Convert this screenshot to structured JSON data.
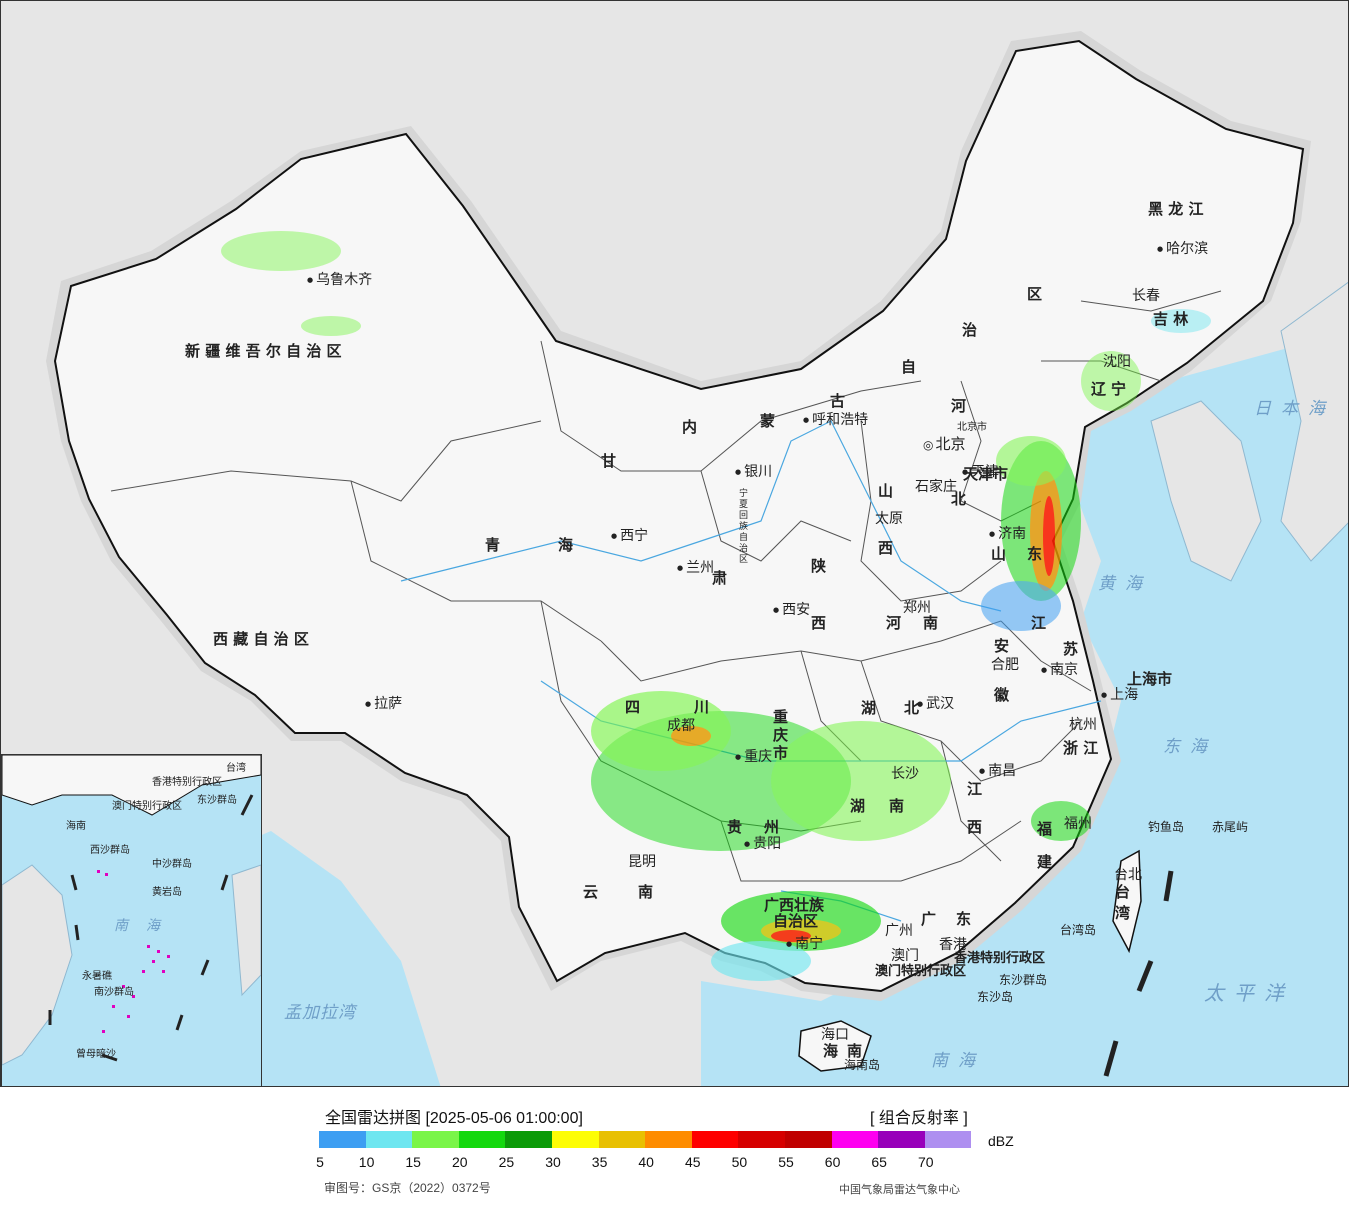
{
  "map": {
    "regions": {
      "xinjiang": "新 疆 维 吾 尔 自 治 区",
      "tibet": "西 藏 自 治 区",
      "qinghai_a": "青",
      "qinghai_b": "海",
      "gansu_a": "甘",
      "gansu_b": "肃",
      "neimenggu_a": "内",
      "neimenggu_b": "蒙",
      "neimenggu_c": "古",
      "neimenggu_d": "自",
      "neimenggu_e": "治",
      "neimenggu_f": "区",
      "heilongjiang": "黑 龙 江",
      "jilin": "吉 林",
      "liaoning_a": "辽",
      "liaoning_b": "宁",
      "hebei_a": "河",
      "hebei_b": "北",
      "shanxi_a": "山",
      "shanxi_b": "西",
      "shaanxi_a": "陕",
      "shaanxi_b": "西",
      "ningxia": "宁夏回族自治区",
      "shandong_a": "山",
      "shandong_b": "东",
      "henan_a": "河",
      "henan_b": "南",
      "jiangsu_a": "江",
      "jiangsu_b": "苏",
      "anhui_a": "安",
      "anhui_b": "徽",
      "shanghai": "上海市",
      "zhejiang": "浙 江",
      "sichuan_a": "四",
      "sichuan_b": "川",
      "chongqing": "重庆市",
      "hubei_a": "湖",
      "hubei_b": "北",
      "hunan_a": "湖",
      "hunan_b": "南",
      "jiangxi_a": "江",
      "jiangxi_b": "西",
      "fujian_a": "福",
      "fujian_b": "建",
      "guizhou_a": "贵",
      "guizhou_b": "州",
      "yunnan_a": "云",
      "yunnan_b": "南",
      "guangxi_a": "广西壮族",
      "guangxi_b": "自治区",
      "guangdong_a": "广",
      "guangdong_b": "东",
      "hainan_a": "海",
      "hainan_b": "南",
      "taiwan_a": "台",
      "taiwan_b": "湾",
      "hk": "香港特别行政区",
      "macau": "澳门特别行政区",
      "beijing": "北京市",
      "tianjin": "天津市"
    },
    "cities": {
      "urumqi": "乌鲁木齐",
      "lhasa": "拉萨",
      "xining": "西宁",
      "lanzhou": "兰州",
      "yinchuan": "银川",
      "huhehaote": "呼和浩特",
      "harbin": "哈尔滨",
      "changchun": "长春",
      "shenyang": "沈阳",
      "beijing": "北京",
      "tianjin": "天津",
      "shijiazhuang": "石家庄",
      "taiyuan": "太原",
      "jinan": "济南",
      "zhengzhou": "郑州",
      "xian": "西安",
      "hefei": "合肥",
      "nanjing": "南京",
      "shanghai": "上海",
      "hangzhou": "杭州",
      "wuhan": "武汉",
      "chengdu": "成都",
      "chongqing": "重庆",
      "changsha": "长沙",
      "nanchang": "南昌",
      "fuzhou": "福州",
      "guiyang": "贵阳",
      "kunming": "昆明",
      "nanning": "南宁",
      "guangzhou": "广州",
      "hongkong": "香港",
      "macau": "澳门",
      "haikou": "海口",
      "taibei": "台北"
    },
    "islands": {
      "diaoyu": "钓鱼岛",
      "chiwei": "赤尾屿",
      "dongsha_qd": "东沙群岛",
      "dongsha_d": "东沙岛",
      "hainan_dao": "海南岛",
      "taiwan_dao": "台湾岛"
    },
    "seas": {
      "japan_sea": "日本海",
      "yellow_sea": "黄海",
      "east_sea": "东海",
      "pacific": "太平洋",
      "south_sea": "南海",
      "bengal": "孟加拉湾"
    }
  },
  "inset": {
    "labels": {
      "hainan": "海南",
      "hk": "香港特别行政区",
      "macau": "澳门特别行政区",
      "dongsha": "东沙群岛",
      "xisha": "西沙群岛",
      "zhongsha": "中沙群岛",
      "huangyan": "黄岩岛",
      "yongshu": "永暑礁",
      "nansha": "南沙群岛",
      "zengmu": "曾母暗沙",
      "taiwan": "台湾",
      "sea": "南海"
    }
  },
  "legend": {
    "title": "全国雷达拼图 [2025-05-06 01:00:00]",
    "product": "[ 组合反射率 ]",
    "unit": "dBZ",
    "colors": [
      "#3d9ef2",
      "#6ee6f0",
      "#7af548",
      "#14d80e",
      "#0b9a08",
      "#fdfd05",
      "#e8c002",
      "#fe8c00",
      "#fe0000",
      "#d60000",
      "#c00000",
      "#fe00f0",
      "#9800ba",
      "#ae8ff0"
    ],
    "ticks": [
      "5",
      "10",
      "15",
      "20",
      "25",
      "30",
      "35",
      "40",
      "45",
      "50",
      "55",
      "60",
      "65",
      "70"
    ],
    "approval": "审图号：GS京（2022）0372号",
    "source": "中国气象局雷达气象中心"
  }
}
